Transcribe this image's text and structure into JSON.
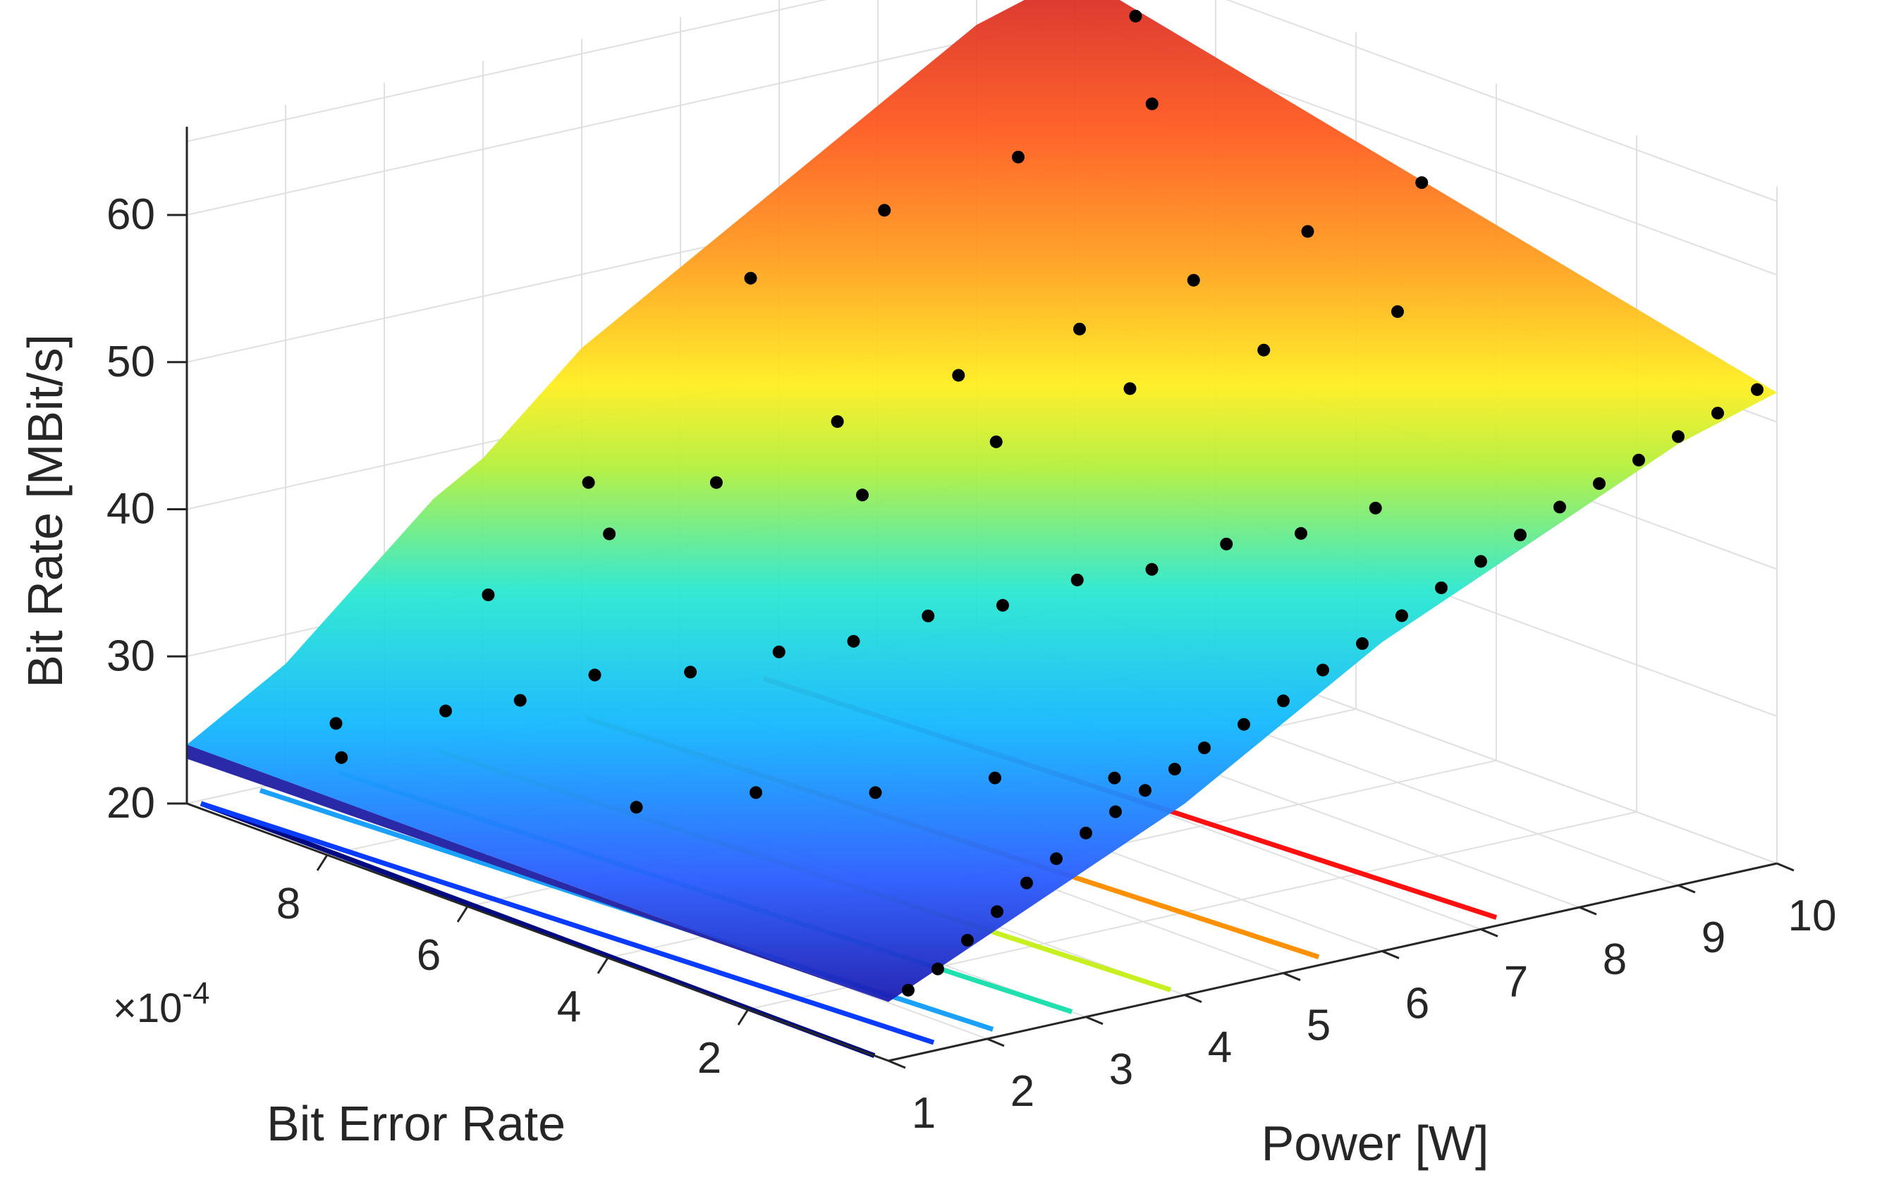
{
  "chart_data": {
    "type": "surface3d",
    "title": "",
    "xlabel": "Power [W]",
    "ylabel": "Bit Error Rate",
    "zlabel": "Bit Rate [MBit/s]",
    "y_exponent_label": "×10",
    "y_exponent_power": "-4",
    "xlim": [
      1,
      10
    ],
    "ylim": [
      0,
      0.001
    ],
    "zlim": [
      20,
      60
    ],
    "x_ticks": [
      "1",
      "2",
      "3",
      "4",
      "5",
      "6",
      "7",
      "8",
      "9",
      "10"
    ],
    "y_ticks": [
      "2",
      "4",
      "6",
      "8"
    ],
    "z_ticks": [
      "20",
      "30",
      "40",
      "50",
      "60"
    ],
    "grid": true,
    "colormap": "jet",
    "surface_profile": {
      "power": [
        1,
        1.5,
        2,
        2.5,
        3,
        3.5,
        4,
        4.5,
        5,
        5.5,
        6,
        6.5,
        7,
        7.5,
        8,
        8.5,
        9,
        9.5,
        10
      ],
      "bit_rate_at_low_ber": [
        24,
        25.5,
        27,
        28.5,
        30,
        31.5,
        33,
        35,
        37,
        39,
        41,
        42.5,
        44,
        45.5,
        47,
        48.5,
        50,
        51,
        52
      ],
      "bit_rate_at_high_ber": [
        24,
        26,
        28,
        31,
        34,
        37,
        39,
        42,
        45,
        47,
        49,
        51,
        53,
        55,
        57,
        59,
        61,
        62,
        63
      ]
    },
    "contour_lines": [
      {
        "level": 20,
        "color": "#000a80",
        "power_intercept": 1.0
      },
      {
        "level": 25,
        "color": "#0a3cff",
        "power_intercept": 1.6
      },
      {
        "level": 30,
        "color": "#1aa0ff",
        "power_intercept": 2.2
      },
      {
        "level": 35,
        "color": "#20e0b0",
        "power_intercept": 3.0
      },
      {
        "level": 40,
        "color": "#c8f020",
        "power_intercept": 4.0
      },
      {
        "level": 45,
        "color": "#ff9000",
        "power_intercept": 5.5
      },
      {
        "level": 50,
        "color": "#ff1010",
        "power_intercept": 7.3
      }
    ],
    "edge_samples": {
      "power": [
        1.2,
        1.5,
        1.8,
        2.1,
        2.4,
        2.7,
        3.0,
        3.3,
        3.6,
        3.9,
        4.2,
        4.6,
        5.0,
        5.4,
        5.8,
        6.2,
        6.6,
        7.0,
        7.4,
        7.8,
        8.2,
        8.6,
        9.0,
        9.4,
        9.8
      ],
      "bit_rate": [
        24.5,
        25.5,
        27,
        28.5,
        30,
        31.2,
        32.5,
        33.5,
        34.5,
        35.5,
        36.5,
        37.5,
        38.5,
        40,
        41.2,
        42.5,
        43.8,
        45,
        46.2,
        47.5,
        48.5,
        49.5,
        50.5,
        51.5,
        52.5
      ]
    },
    "scatter_points": [
      [
        1.5,
        0.00085,
        25
      ],
      [
        1.8,
        0.0009,
        26
      ],
      [
        2.2,
        0.0008,
        28
      ],
      [
        2.6,
        0.00075,
        29
      ],
      [
        3.0,
        0.0007,
        31
      ],
      [
        3.4,
        0.00062,
        32
      ],
      [
        3.8,
        0.00055,
        34
      ],
      [
        4.2,
        0.0005,
        35
      ],
      [
        4.6,
        0.00045,
        37
      ],
      [
        5.0,
        0.0004,
        38
      ],
      [
        5.4,
        0.00035,
        40
      ],
      [
        5.8,
        0.0003,
        41
      ],
      [
        6.2,
        0.00025,
        43
      ],
      [
        6.6,
        0.0002,
        44
      ],
      [
        7.0,
        0.00015,
        46
      ],
      [
        2.0,
        0.0005,
        27
      ],
      [
        2.5,
        0.0004,
        29
      ],
      [
        3.0,
        0.0003,
        30
      ],
      [
        3.5,
        0.0002,
        32
      ],
      [
        4.0,
        0.0001,
        33
      ],
      [
        3.2,
        0.00088,
        33
      ],
      [
        4.0,
        0.00082,
        37
      ],
      [
        4.8,
        0.00078,
        40
      ],
      [
        5.6,
        0.00072,
        44
      ],
      [
        6.4,
        0.00066,
        47
      ],
      [
        7.2,
        0.0006,
        50
      ],
      [
        8.0,
        0.00055,
        53
      ],
      [
        8.8,
        0.0005,
        56
      ],
      [
        9.6,
        0.00045,
        59
      ],
      [
        9.9,
        0.0009,
        62
      ],
      [
        6.0,
        0.0009,
        50
      ],
      [
        7.0,
        0.00085,
        54
      ],
      [
        8.0,
        0.0008,
        57
      ],
      [
        9.0,
        0.00075,
        60
      ],
      [
        5.0,
        0.0006,
        42
      ],
      [
        6.0,
        0.00055,
        45
      ],
      [
        7.0,
        0.0005,
        48
      ],
      [
        8.0,
        0.00045,
        50
      ],
      [
        9.0,
        0.0004,
        52
      ],
      [
        4.5,
        0.00092,
        38
      ]
    ]
  }
}
